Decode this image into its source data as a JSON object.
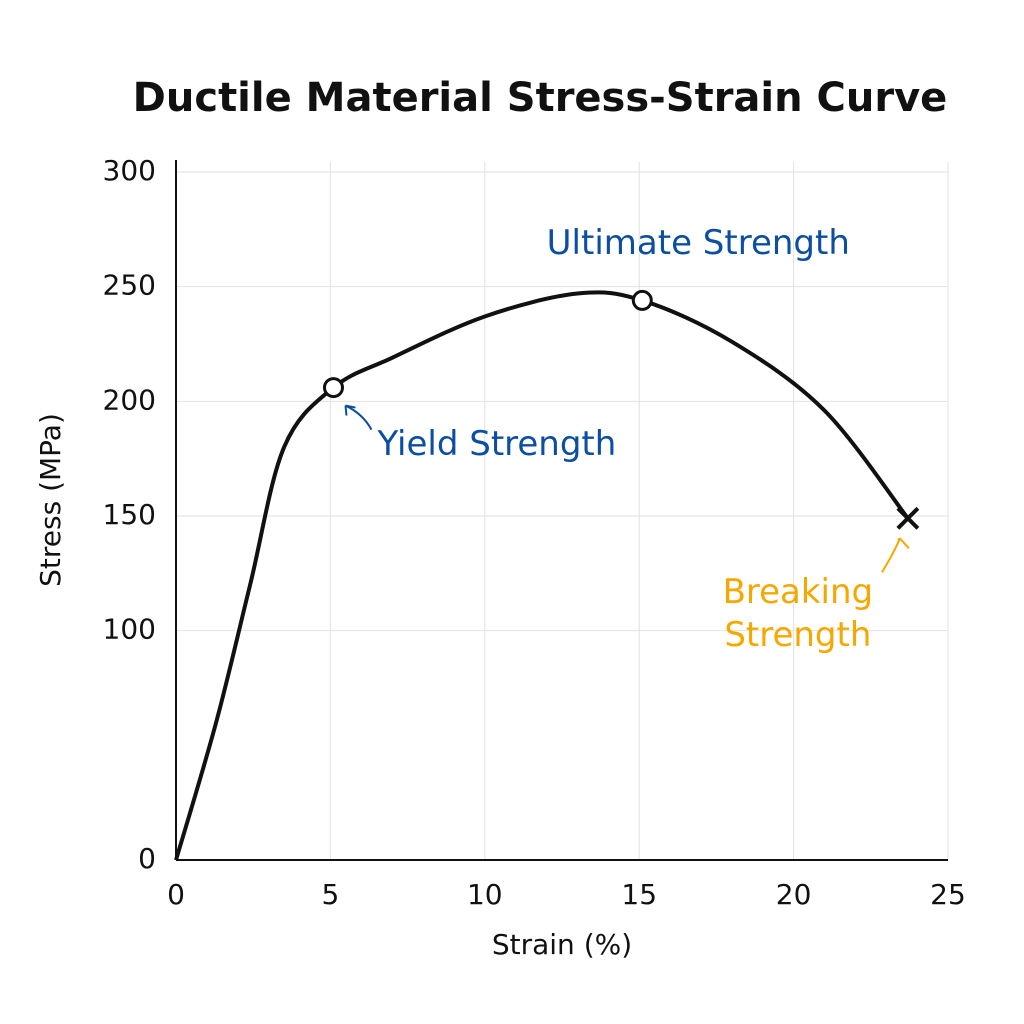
{
  "chart_data": {
    "type": "line",
    "title": "Ductile Material Stress-Strain Curve",
    "x_label": "Strain (%)",
    "y_label": "Stress (MPa)",
    "x": [
      0,
      1.3,
      2.4,
      3.5,
      5.1,
      7,
      10,
      13,
      15.1,
      18,
      21,
      23.7
    ],
    "series": [
      {
        "color": "#111111",
        "values": [
          0,
          60,
          120,
          180,
          206,
          219,
          237,
          247,
          244,
          226,
          196,
          149
        ]
      }
    ],
    "xlim": [
      0,
      25
    ],
    "ylim": [
      0,
      300
    ],
    "xticks": [
      0,
      5,
      10,
      15,
      20,
      25
    ],
    "yticks": [
      0,
      100,
      150,
      200,
      250,
      300
    ],
    "grid": true,
    "annotations": [
      {
        "lines": [
          "Yield Strength"
        ],
        "x": 5.1,
        "y": 206,
        "color": "#0b4ea2",
        "marker": "circle"
      },
      {
        "lines": [
          "Ultimate Strength"
        ],
        "x": 15.1,
        "y": 244,
        "color": "#0b4ea2",
        "marker": "circle"
      },
      {
        "lines": [
          "Breaking",
          "Strength"
        ],
        "x": 23.7,
        "y": 149,
        "color": "#f5a800",
        "marker": "cross"
      }
    ]
  }
}
